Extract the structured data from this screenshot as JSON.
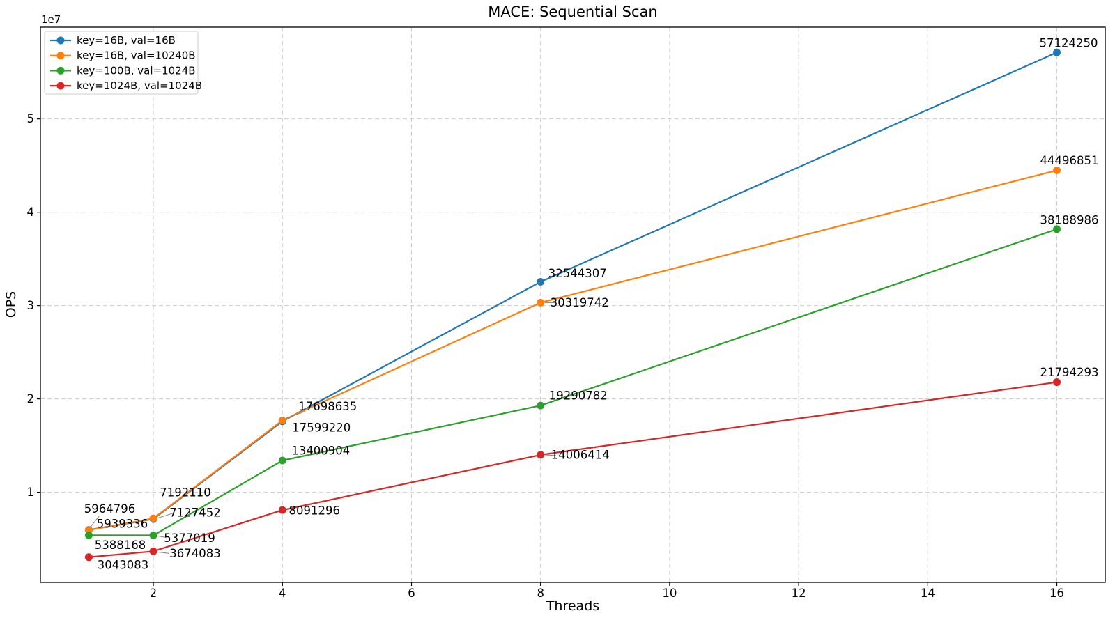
{
  "chart_data": {
    "type": "line",
    "title": "MACE: Sequential Scan",
    "xlabel": "Threads",
    "ylabel": "OPS",
    "y_axis_offset_label": "1e7",
    "x": [
      1,
      2,
      4,
      8,
      16
    ],
    "series": [
      {
        "name": "key=16B, val=16B",
        "color": "#1f77b4",
        "values": [
          5964796,
          7127452,
          17599220,
          32544307,
          57124250
        ]
      },
      {
        "name": "key=16B, val=10240B",
        "color": "#ff7f0e",
        "values": [
          5939336,
          7192110,
          17698635,
          30319742,
          44496851
        ]
      },
      {
        "name": "key=100B, val=1024B",
        "color": "#2ca02c",
        "values": [
          5388168,
          5377019,
          13400904,
          19290782,
          38188986
        ]
      },
      {
        "name": "key=1024B, val=1024B",
        "color": "#d62728",
        "values": [
          3043083,
          3674083,
          8091296,
          14006414,
          21794293
        ]
      }
    ],
    "xticks": [
      2,
      4,
      6,
      8,
      10,
      12,
      14,
      16
    ],
    "ytick_values": [
      10000000,
      20000000,
      30000000,
      40000000,
      50000000
    ],
    "ytick_labels": [
      "1",
      "2",
      "3",
      "4",
      "5"
    ],
    "xlim": [
      0.25,
      16.75
    ],
    "ylim": [
      339025,
      59828308
    ],
    "grid": {
      "visible": true,
      "line_style": "dashed",
      "color": "#cccccc"
    },
    "legend": {
      "position": "upper-left",
      "border_color": "#cccccc",
      "background": "#ffffff"
    },
    "point_labels_visible": true,
    "leader_line_color": "#7f7f7f",
    "axis_color": "#000000"
  }
}
